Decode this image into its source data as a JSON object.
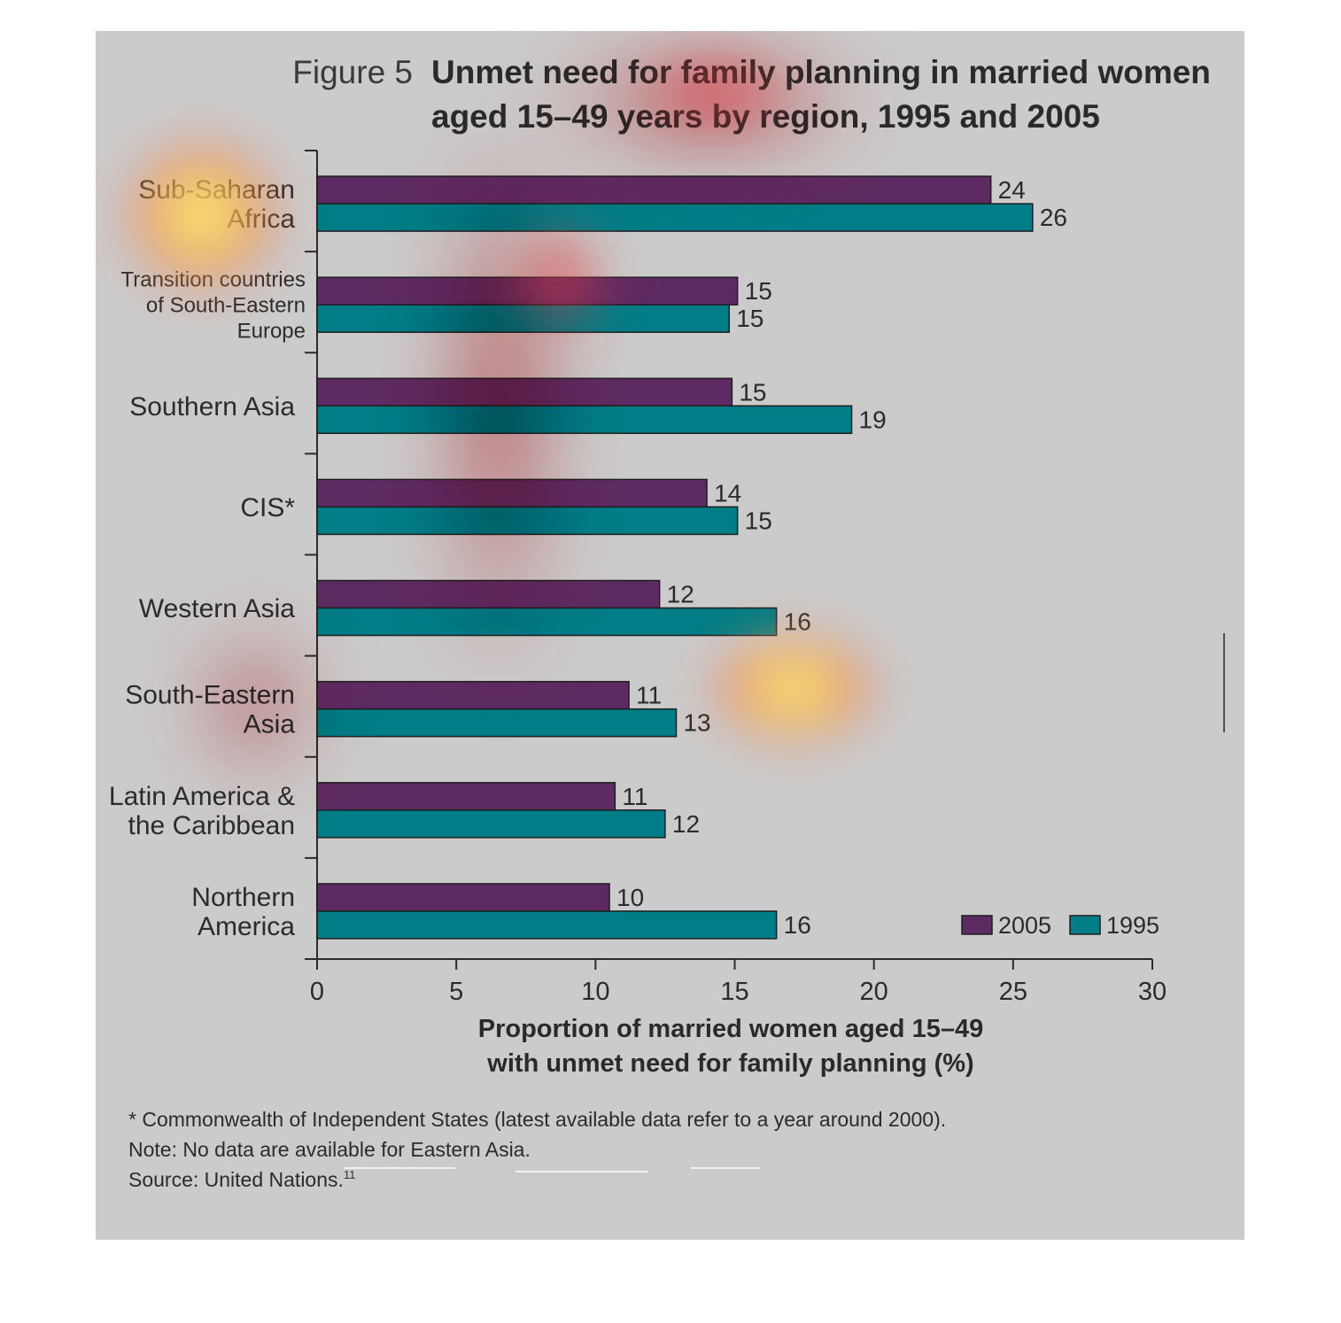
{
  "figure": {
    "number_label": "Figure 5",
    "title_line1": "Unmet need for family planning in married women",
    "title_line2": "aged 15–49 years by region, 1995 and 2005"
  },
  "chart_data": {
    "type": "bar",
    "orientation": "horizontal",
    "categories": [
      [
        "Sub-Saharan",
        "Africa"
      ],
      [
        "Transition countries",
        "of South-Eastern",
        "Europe"
      ],
      [
        "Southern Asia"
      ],
      [
        "CIS*"
      ],
      [
        "Western Asia"
      ],
      [
        "South-Eastern",
        "Asia"
      ],
      [
        "Latin America &",
        "the Caribbean"
      ],
      [
        "Northern",
        "America"
      ]
    ],
    "series": [
      {
        "name": "2005",
        "color": "#5e2a63",
        "values": [
          24.2,
          15.1,
          14.9,
          14.0,
          12.3,
          11.2,
          10.7,
          10.5
        ],
        "labels": [
          "24",
          "15",
          "15",
          "14",
          "12",
          "11",
          "11",
          "10"
        ]
      },
      {
        "name": "1995",
        "color": "#007d87",
        "values": [
          25.7,
          14.8,
          19.2,
          15.1,
          16.5,
          12.9,
          12.5,
          16.5
        ],
        "labels": [
          "26",
          "15",
          "19",
          "15",
          "16",
          "13",
          "12",
          "16"
        ]
      }
    ],
    "xlim": [
      0,
      30
    ],
    "xticks": [
      0,
      5,
      10,
      15,
      20,
      25,
      30
    ],
    "xlabel_line1": "Proportion of married women aged 15–49",
    "xlabel_line2": "with unmet need for family planning (%)",
    "legend_position": "bottom-right",
    "grid": false
  },
  "footnotes": {
    "line1": "* Commonwealth of Independent States (latest available data refer to a year around 2000).",
    "line2": "Note: No data are available for Eastern Asia.",
    "line3": "Source: United Nations.",
    "line3_superscript": "11"
  },
  "colors": {
    "background": "#cbcbcb",
    "bar_2005": "#5e2a63",
    "bar_1995": "#007d87",
    "title_accent": "#2a2a2a",
    "heatmap_hot": "#ffff60",
    "heatmap_warm": "#e83a3a"
  }
}
